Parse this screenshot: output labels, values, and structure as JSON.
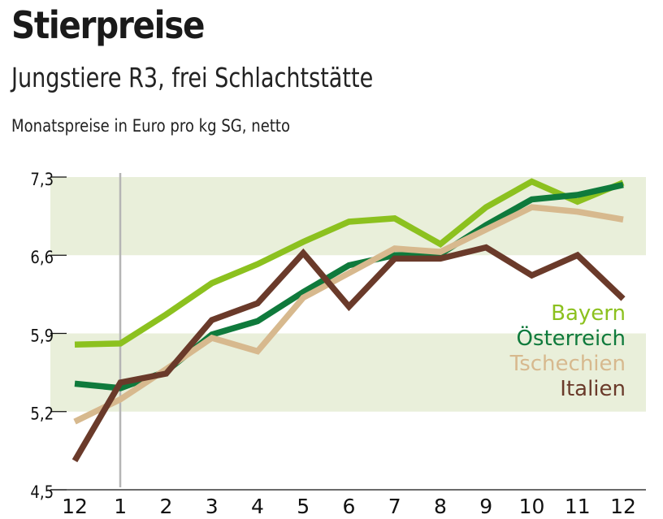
{
  "chart_data": {
    "type": "line",
    "title": "Stierpreise",
    "subtitle": "Jungstiere R3, frei Schlachtstätte",
    "ylabel": "Monatspreise in Euro pro kg SG, netto",
    "xlabel": "",
    "categories": [
      "12",
      "1",
      "2",
      "3",
      "4",
      "5",
      "6",
      "7",
      "8",
      "9",
      "10",
      "11",
      "12"
    ],
    "ylim": [
      4.5,
      7.3
    ],
    "yticks": [
      "4,5",
      "5,2",
      "5,9",
      "6,6",
      "7,3"
    ],
    "ytick_values": [
      4.5,
      5.2,
      5.9,
      6.6,
      7.3
    ],
    "grid": "alternating bands",
    "band_color": "#e9efda",
    "legend_placement": "right",
    "series": [
      {
        "name": "Bayern",
        "color": "#8cc11f",
        "values": [
          5.8,
          5.81,
          6.07,
          6.35,
          6.52,
          6.72,
          6.9,
          6.93,
          6.7,
          7.03,
          7.26,
          7.08,
          7.25
        ]
      },
      {
        "name": "Österreich",
        "color": "#0f7a3c",
        "values": [
          5.45,
          5.41,
          5.56,
          5.89,
          6.01,
          6.27,
          6.51,
          6.6,
          6.61,
          6.87,
          7.1,
          7.14,
          7.23
        ]
      },
      {
        "name": "Tschechien",
        "color": "#d7b98e",
        "values": [
          5.11,
          5.31,
          5.58,
          5.86,
          5.74,
          6.22,
          6.44,
          6.66,
          6.63,
          6.83,
          7.03,
          6.99,
          6.92
        ]
      },
      {
        "name": "Italien",
        "color": "#6a3a2a",
        "values": [
          4.76,
          5.46,
          5.54,
          6.02,
          6.17,
          6.62,
          6.14,
          6.57,
          6.57,
          6.67,
          6.42,
          6.6,
          6.21
        ]
      }
    ]
  }
}
